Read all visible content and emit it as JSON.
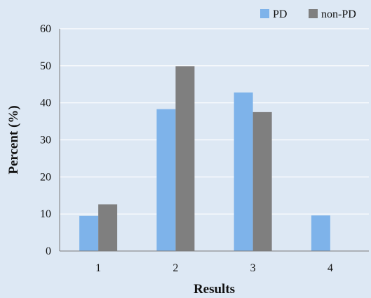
{
  "chart_data": {
    "type": "bar",
    "title": "",
    "xlabel": "Results",
    "ylabel": "Percent (%)",
    "categories": [
      "1",
      "2",
      "3",
      "4"
    ],
    "series": [
      {
        "name": "PD",
        "values": [
          9.5,
          38.3,
          42.8,
          9.6
        ]
      },
      {
        "name": "non-PD",
        "values": [
          12.6,
          49.9,
          37.5,
          0
        ]
      }
    ],
    "ylim": [
      0,
      60
    ],
    "yticks": [
      "0",
      "10",
      "20",
      "30",
      "40",
      "50",
      "60"
    ],
    "grid": true,
    "legend_position": "top-right"
  },
  "colors": {
    "background": "#dde8f4",
    "PD": "#7eb3ea",
    "non-PD": "#7f7f7f",
    "grid": "#ffffff",
    "axis": "#7a7a7a"
  }
}
